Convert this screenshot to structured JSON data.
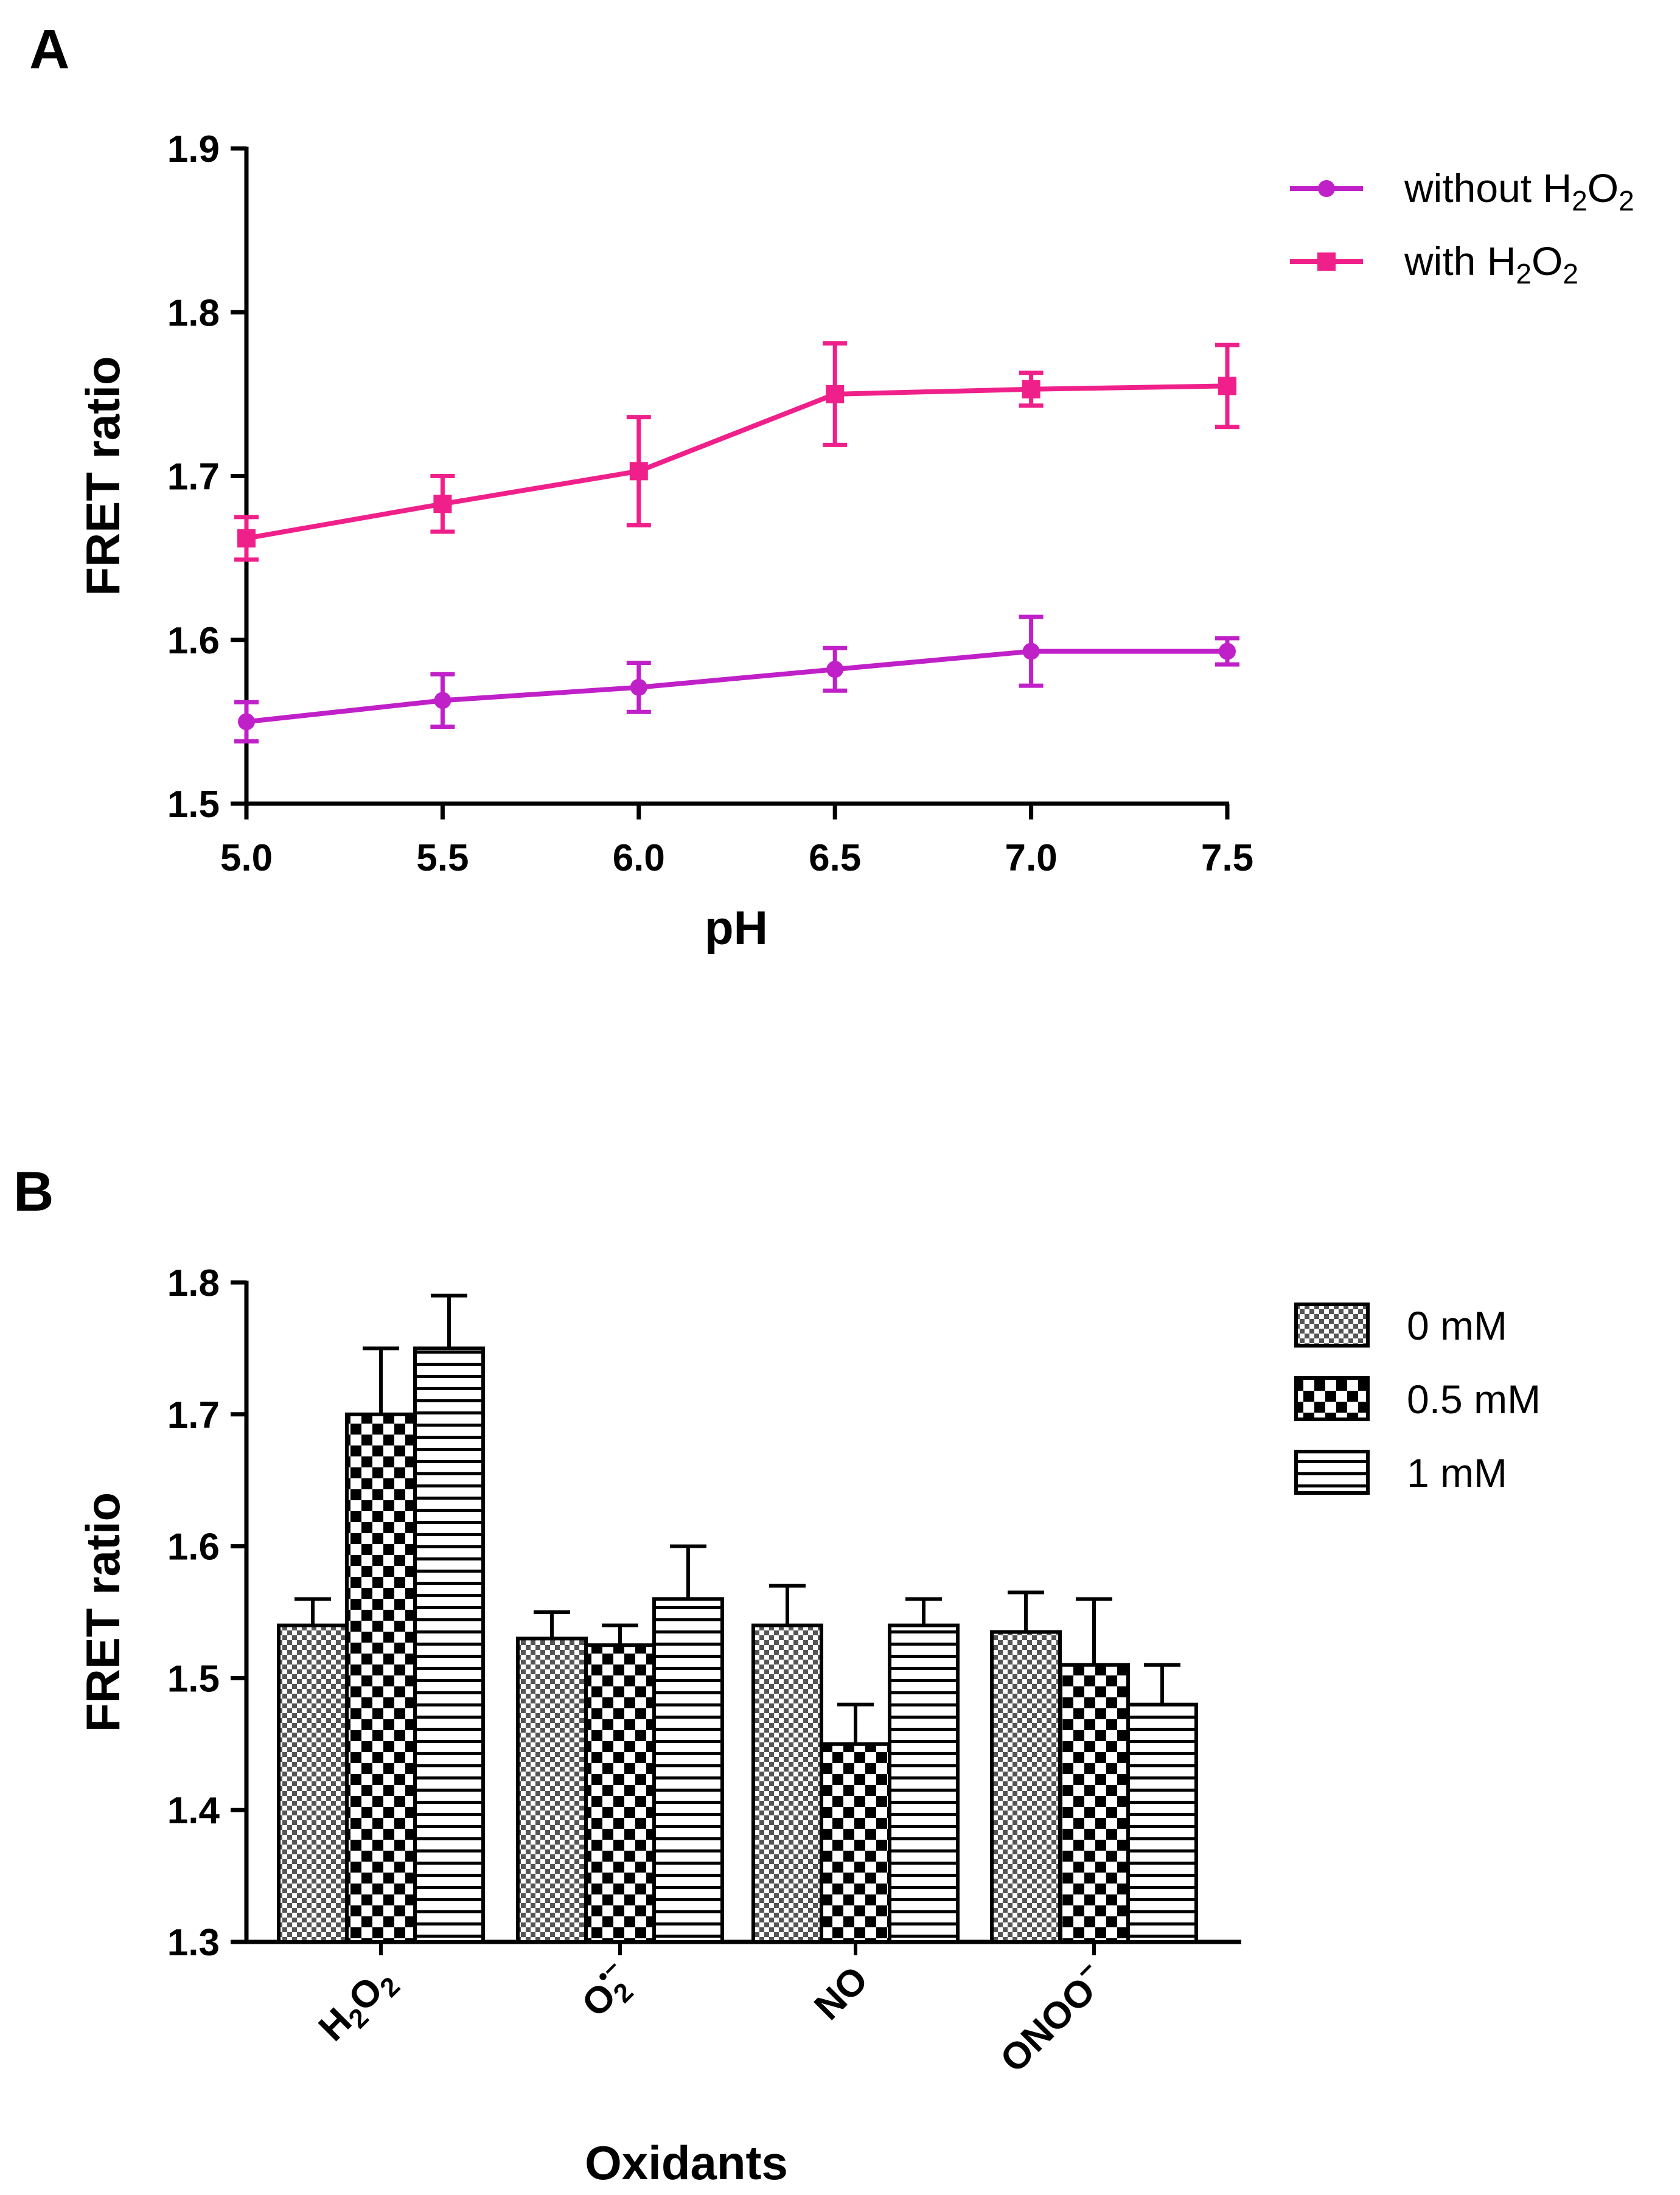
{
  "chart_data": [
    {
      "panel_label": "A",
      "type": "line",
      "xlabel": "pH",
      "ylabel": "FRET ratio",
      "xlim": [
        5.0,
        7.5
      ],
      "ylim": [
        1.5,
        1.9
      ],
      "x_ticks": [
        "5.0",
        "5.5",
        "6.0",
        "6.5",
        "7.0",
        "7.5"
      ],
      "y_ticks": [
        "1.5",
        "1.6",
        "1.7",
        "1.8",
        "1.9"
      ],
      "x": [
        5.0,
        5.5,
        6.0,
        6.5,
        7.0,
        7.5
      ],
      "grid": false,
      "legend_position": "top-right",
      "series": [
        {
          "name": "without H2O2",
          "label_parts": [
            "without H",
            "2",
            "O",
            "2"
          ],
          "color": "#c020c8",
          "marker": "circle",
          "values": [
            1.55,
            1.563,
            1.571,
            1.582,
            1.593,
            1.593
          ],
          "errors": [
            0.012,
            0.016,
            0.015,
            0.013,
            0.021,
            0.008
          ]
        },
        {
          "name": "with H2O2",
          "label_parts": [
            "with H",
            "2",
            "O",
            "2"
          ],
          "color": "#f0208a",
          "marker": "square",
          "values": [
            1.662,
            1.683,
            1.703,
            1.75,
            1.753,
            1.755
          ],
          "errors": [
            0.013,
            0.017,
            0.033,
            0.031,
            0.01,
            0.025
          ]
        }
      ]
    },
    {
      "panel_label": "B",
      "type": "bar",
      "xlabel": "Oxidants",
      "ylabel": "FRET ratio",
      "ylim": [
        1.3,
        1.8
      ],
      "y_ticks": [
        "1.3",
        "1.4",
        "1.5",
        "1.6",
        "1.7",
        "1.8"
      ],
      "categories": [
        {
          "parts": [
            "H",
            "2",
            "O",
            "2"
          ]
        },
        {
          "parts": [
            "O",
            "2",
            "•−"
          ]
        },
        {
          "parts": [
            "NO"
          ]
        },
        {
          "parts": [
            "ONOO",
            "−"
          ]
        }
      ],
      "grid": false,
      "legend_position": "top-right",
      "series": [
        {
          "name": "0 mM",
          "pattern": "fine-check",
          "values": [
            1.54,
            1.53,
            1.54,
            1.535
          ],
          "errors": [
            0.02,
            0.02,
            0.03,
            0.03
          ]
        },
        {
          "name": "0.5 mM",
          "pattern": "coarse-check",
          "values": [
            1.7,
            1.525,
            1.45,
            1.51
          ],
          "errors": [
            0.05,
            0.015,
            0.03,
            0.05
          ]
        },
        {
          "name": "1 mM",
          "pattern": "horizontal-stripes",
          "values": [
            1.75,
            1.56,
            1.54,
            1.48
          ],
          "errors": [
            0.04,
            0.04,
            0.02,
            0.03
          ]
        }
      ]
    }
  ]
}
